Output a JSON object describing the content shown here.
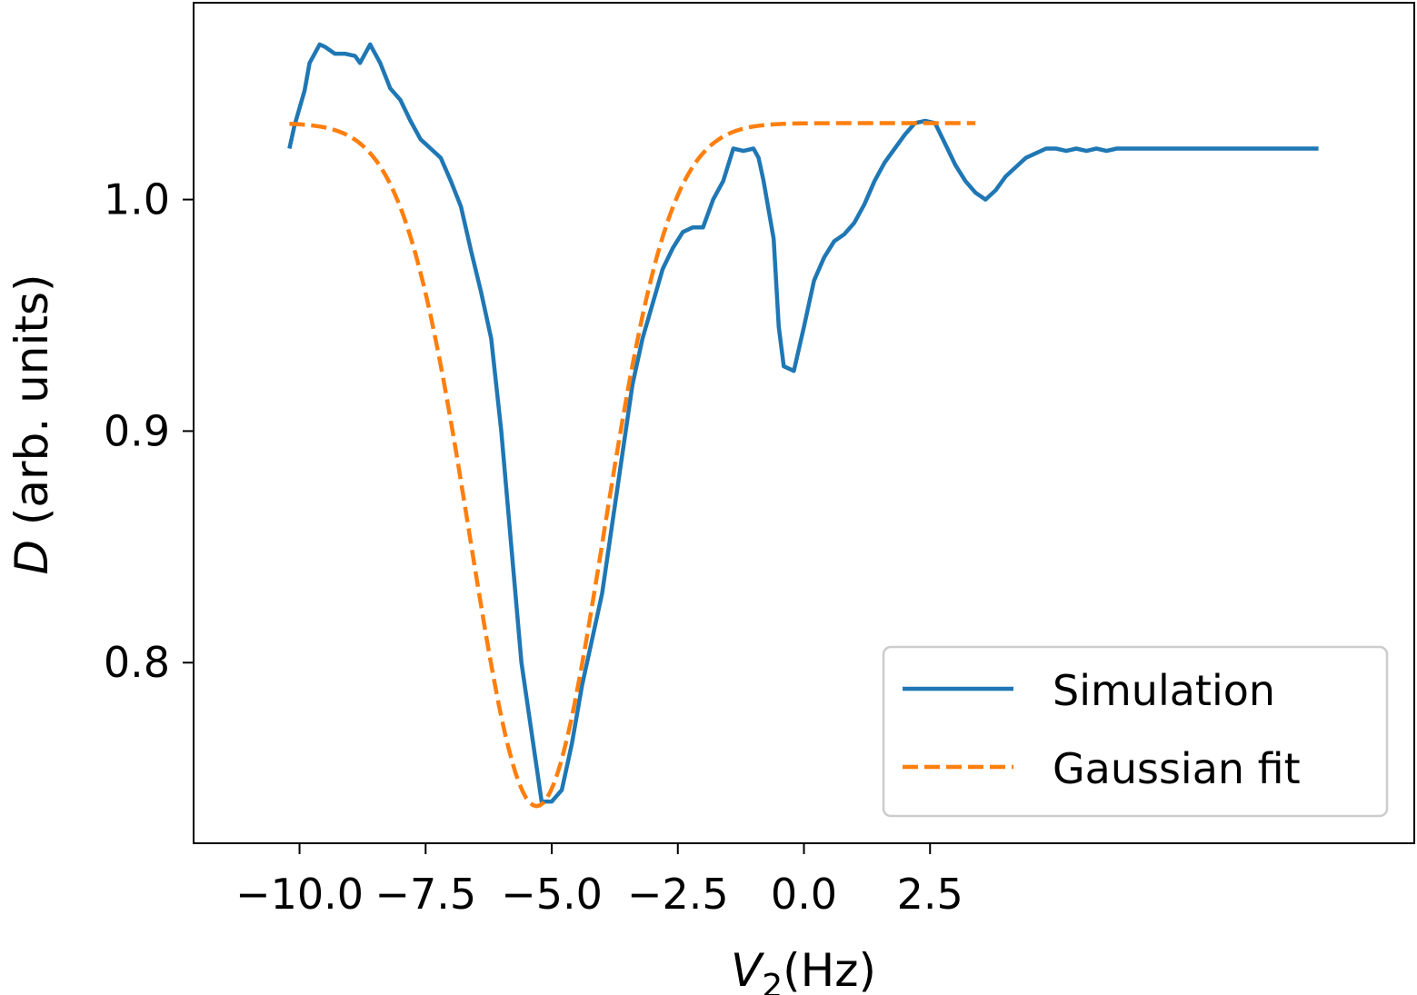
{
  "chart_data": {
    "type": "line",
    "xlabel": {
      "main": "V",
      "sub": "2",
      "rest": "(Hz)"
    },
    "ylabel": {
      "main": "D",
      "rest": " (arb. units)"
    },
    "xlim": [
      -12.1,
      12.1
    ],
    "ylim": [
      0.722,
      1.085
    ],
    "xticks": [
      {
        "value": -10.0,
        "label": "−10.0"
      },
      {
        "value": -7.5,
        "label": "−7.5"
      },
      {
        "value": -5.0,
        "label": "−5.0"
      },
      {
        "value": -2.5,
        "label": "−2.5"
      },
      {
        "value": 0.0,
        "label": "0.0"
      },
      {
        "value": 2.5,
        "label": "2.5"
      }
    ],
    "yticks": [
      {
        "value": 0.8,
        "label": "0.8"
      },
      {
        "value": 0.9,
        "label": "0.9"
      },
      {
        "value": 1.0,
        "label": "1.0"
      }
    ],
    "grid": false,
    "legend_position": "lower-right",
    "series": [
      {
        "name": "Simulation",
        "color": "#1f77b4",
        "style": "solid",
        "x": [
          -10.2,
          -10.1,
          -9.9,
          -9.8,
          -9.6,
          -9.5,
          -9.3,
          -9.1,
          -8.9,
          -8.8,
          -8.6,
          -8.4,
          -8.2,
          -8.0,
          -7.8,
          -7.6,
          -7.4,
          -7.2,
          -7.0,
          -6.8,
          -6.6,
          -6.4,
          -6.2,
          -6.0,
          -5.8,
          -5.6,
          -5.4,
          -5.2,
          -5.0,
          -4.8,
          -4.6,
          -4.4,
          -4.2,
          -4.0,
          -3.8,
          -3.6,
          -3.4,
          -3.2,
          -3.0,
          -2.8,
          -2.6,
          -2.4,
          -2.2,
          -2.0,
          -1.8,
          -1.6,
          -1.4,
          -1.2,
          -1.0,
          -0.9,
          -0.8,
          -0.6,
          -0.5,
          -0.4,
          -0.2,
          0.0,
          0.2,
          0.4,
          0.6,
          0.8,
          1.0,
          1.2,
          1.4,
          1.6,
          1.8,
          2.0,
          2.2,
          2.4,
          2.6,
          2.8,
          3.0,
          3.2,
          3.4,
          3.6,
          3.8,
          4.0,
          4.2,
          4.4,
          4.6,
          4.8,
          5.0,
          5.2,
          5.4,
          5.6,
          5.8,
          6.0,
          6.2,
          6.4,
          6.6,
          6.8,
          7.0,
          7.2,
          7.4,
          7.6,
          7.8,
          8.0,
          8.2,
          8.4,
          8.6,
          8.8,
          9.0,
          9.2,
          9.4,
          9.6,
          9.8,
          10.0,
          10.2
        ],
        "y": [
          1.022,
          1.032,
          1.047,
          1.059,
          1.067,
          1.066,
          1.063,
          1.063,
          1.062,
          1.059,
          1.067,
          1.059,
          1.048,
          1.043,
          1.034,
          1.026,
          1.022,
          1.018,
          1.008,
          0.997,
          0.978,
          0.96,
          0.94,
          0.9,
          0.85,
          0.8,
          0.77,
          0.74,
          0.74,
          0.745,
          0.765,
          0.79,
          0.81,
          0.83,
          0.86,
          0.89,
          0.92,
          0.94,
          0.955,
          0.97,
          0.979,
          0.986,
          0.988,
          0.988,
          1.0,
          1.008,
          1.022,
          1.021,
          1.022,
          1.018,
          1.008,
          0.983,
          0.945,
          0.928,
          0.926,
          0.945,
          0.965,
          0.975,
          0.982,
          0.985,
          0.99,
          0.998,
          1.008,
          1.016,
          1.022,
          1.028,
          1.033,
          1.034,
          1.033,
          1.024,
          1.015,
          1.008,
          1.003,
          1.0,
          1.004,
          1.01,
          1.014,
          1.018,
          1.02,
          1.022,
          1.022,
          1.021,
          1.022,
          1.021,
          1.022,
          1.021,
          1.022,
          1.022,
          1.022,
          1.022,
          1.022,
          1.022,
          1.022,
          1.022,
          1.022,
          1.022,
          1.022,
          1.022,
          1.022,
          1.022,
          1.022,
          1.022,
          1.022,
          1.022,
          1.022,
          1.022,
          1.022
        ]
      },
      {
        "name": "Gaussian fit",
        "color": "#ff7f0e",
        "style": "dashed",
        "fit": {
          "baseline": 1.033,
          "depth": 0.295,
          "center": -5.3,
          "sigma": 1.32
        },
        "x_range": [
          -10.2,
          3.4
        ]
      }
    ]
  }
}
